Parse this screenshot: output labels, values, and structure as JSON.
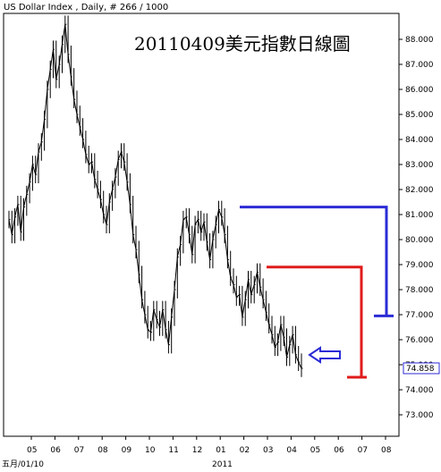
{
  "header": "US Dollar Index , Daily, # 266 / 1000",
  "chart_data": {
    "type": "line",
    "title": "20110409美元指數日線圖",
    "instrument": "US Dollar Index",
    "interval": "Daily",
    "bar_count_label": "# 266 / 1000",
    "ylim": [
      72.5,
      88.6
    ],
    "y_ticks": [
      "88.000",
      "87.000",
      "86.000",
      "85.000",
      "84.000",
      "83.000",
      "82.000",
      "81.000",
      "80.000",
      "79.000",
      "78.000",
      "77.000",
      "76.000",
      "75.000",
      "74.000",
      "73.000"
    ],
    "x_ticks": [
      "05",
      "06",
      "07",
      "08",
      "09",
      "10",
      "11",
      "12",
      "01",
      "02",
      "03",
      "04",
      "05",
      "06",
      "07",
      "08"
    ],
    "x_secondary_labels": [
      "五月/01/10",
      "2011"
    ],
    "last_price_label": "74.858",
    "series": [
      {
        "values": [
          80.8,
          80.2,
          80.9,
          81.4,
          80.3,
          81.3,
          81.8,
          82.3,
          83.0,
          82.6,
          83.5,
          83.9,
          84.8,
          86.0,
          86.8,
          87.6,
          86.4,
          87.0,
          87.8,
          88.6,
          87.4,
          86.5,
          85.6,
          85.0,
          84.5,
          84.0,
          83.4,
          83.0,
          83.1,
          82.4,
          82.0,
          81.6,
          81.0,
          80.6,
          81.5,
          82.0,
          82.5,
          83.2,
          83.5,
          83.1,
          82.3,
          81.4,
          80.2,
          79.6,
          78.6,
          77.6,
          77.0,
          76.4,
          76.3,
          77.2,
          76.8,
          76.5,
          77.2,
          76.4,
          75.8,
          76.9,
          78.0,
          79.3,
          79.8,
          80.8,
          80.9,
          80.2,
          79.4,
          80.6,
          80.8,
          80.3,
          80.7,
          79.9,
          79.2,
          80.0,
          80.6,
          81.2,
          80.9,
          80.2,
          79.2,
          78.5,
          78.2,
          77.7,
          77.8,
          76.9,
          77.6,
          78.4,
          77.8,
          78.2,
          78.7,
          78.1,
          77.6,
          77.1,
          76.6,
          76.2,
          75.7,
          75.9,
          76.6,
          76.1,
          75.3,
          75.8,
          76.2,
          75.4,
          75.1,
          74.858
        ]
      }
    ],
    "annotations": [
      {
        "type": "bracket",
        "color": "#2b2bd6",
        "from": 81.3,
        "to": 76.95
      },
      {
        "type": "bracket",
        "color": "#e01b1b",
        "from": 78.9,
        "to": 74.5
      },
      {
        "type": "arrow",
        "color": "#2b2bd6",
        "direction": "left"
      }
    ]
  }
}
